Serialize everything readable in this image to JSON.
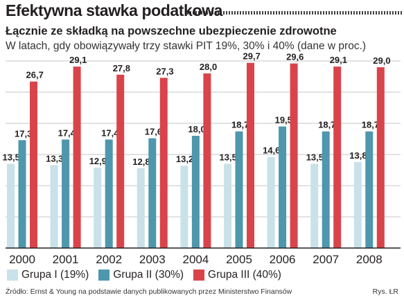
{
  "header": {
    "title": "Efektywna stawka podatkowa",
    "subtitle": "Łącznie ze składką na powszechne ubezpieczenie zdrowotne",
    "description": "W latach, gdy obowiązywały trzy stawki PIT 19%, 30%  i 40% (dane w proc.)"
  },
  "footer": {
    "source": "Źródło: Ernst & Young na podstawie danych publikowanych przez Ministerstwo Finansów",
    "credit": "Rys. ŁR"
  },
  "colors": {
    "grupa1": "#c9e1e8",
    "grupa2": "#4e97ac",
    "grupa3": "#d9444b",
    "grid": "#c4c4c4"
  },
  "chart_data": {
    "type": "bar",
    "categories": [
      "2000",
      "2001",
      "2002",
      "2003",
      "2004",
      "2005",
      "2006",
      "2007",
      "2008"
    ],
    "ylim": [
      0,
      30
    ],
    "grid": true,
    "legend_position": "bottom",
    "series": [
      {
        "name": "Grupa I (19%)",
        "labels": [
          "13,5",
          "13,3",
          "12,9",
          "12,8",
          "13,2",
          "13,5",
          "14,6",
          "13,5",
          "13,8"
        ],
        "values": [
          13.5,
          13.3,
          12.9,
          12.8,
          13.2,
          13.5,
          14.6,
          13.5,
          13.8
        ]
      },
      {
        "name": "Grupa II (30%)",
        "labels": [
          "17,3",
          "17,4",
          "17,4",
          "17,6",
          "18,0",
          "18,7",
          "19,5",
          "18,7",
          "18,7"
        ],
        "values": [
          17.3,
          17.4,
          17.4,
          17.6,
          18.0,
          18.7,
          19.5,
          18.7,
          18.7
        ]
      },
      {
        "name": "Grupa III (40%)",
        "labels": [
          "26,7",
          "29,1",
          "27,8",
          "27,3",
          "28,0",
          "29,7",
          "29,6",
          "29,1",
          "29,0"
        ],
        "values": [
          26.7,
          29.1,
          27.8,
          27.3,
          28.0,
          29.7,
          29.6,
          29.1,
          29.0
        ]
      }
    ]
  }
}
